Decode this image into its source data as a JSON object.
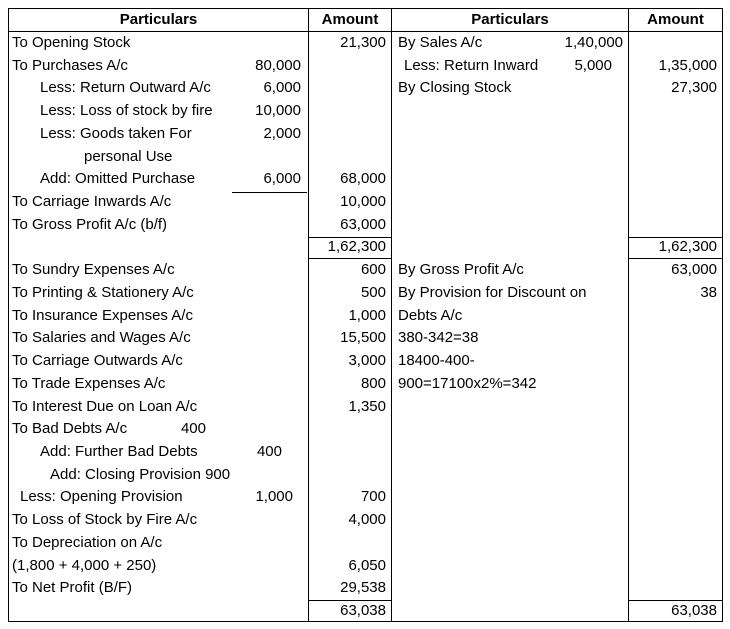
{
  "table": {
    "header": [
      "Particulars",
      "Amount",
      "Particulars",
      "Amount"
    ],
    "rows": [
      {
        "left": "To Opening Stock",
        "left_amount": "21,300",
        "right": "By Sales A/c",
        "right_inner": "1,40,000"
      },
      {
        "left": "To Purchases A/c",
        "left_inner": "80,000",
        "right": "Less: Return Inward",
        "right_inner": "5,000",
        "right_amount": "1,35,000"
      },
      {
        "left": "Less: Return Outward A/c",
        "left_inner": "6,000",
        "right": "By Closing Stock",
        "right_amount": "27,300"
      },
      {
        "left": "Less: Loss of stock by fire",
        "left_inner": "10,000"
      },
      {
        "left": "Less: Goods taken For",
        "left_inner": "2,000"
      },
      {
        "left": "personal Use"
      },
      {
        "left": "Add: Omitted Purchase",
        "left_inner": "6,000",
        "left_amount": "68,000"
      },
      {
        "left": "To Carriage Inwards A/c",
        "left_amount": "10,000"
      },
      {
        "left": "To Gross Profit A/c (b/f)",
        "left_amount": "63,000"
      },
      {
        "left_amount": "1,62,300",
        "right_amount": "1,62,300"
      },
      {
        "left": "To Sundry Expenses A/c",
        "left_amount": "600",
        "right": "By Gross Profit A/c",
        "right_amount": "63,000"
      },
      {
        "left": "To Printing & Stationery A/c",
        "left_amount": "500",
        "right": "By Provision for Discount on",
        "right_amount": "38"
      },
      {
        "left": "To Insurance Expenses A/c",
        "left_amount": "1,000",
        "right": "Debts A/c"
      },
      {
        "left": "To Salaries and Wages A/c",
        "left_amount": "15,500",
        "right": "380-342=38"
      },
      {
        "left": "To Carriage Outwards A/c",
        "left_amount": "3,000",
        "right": "18400-400-"
      },
      {
        "left": "To Trade Expenses A/c",
        "left_amount": "800",
        "right": "900=17100x2%=342"
      },
      {
        "left": "To Interest Due on Loan A/c",
        "left_amount": "1,350"
      },
      {
        "left": "To Bad Debts A/c",
        "left_inner": "400"
      },
      {
        "left": "Add: Further Bad Debts",
        "left_inner": "400"
      },
      {
        "left": "Add: Closing Provision 900"
      },
      {
        "left": "Less: Opening Provision",
        "left_inner": "1,000",
        "left_amount": "700"
      },
      {
        "left": "To Loss of Stock by Fire A/c",
        "left_amount": "4,000"
      },
      {
        "left": "To Depreciation on A/c"
      },
      {
        "left": "(1,800 + 4,000 + 250)",
        "left_amount": "6,050"
      },
      {
        "left": "To Net Profit (B/F)",
        "left_amount": "29,538"
      },
      {
        "left_amount": "63,038",
        "right_amount": "63,038"
      }
    ]
  }
}
